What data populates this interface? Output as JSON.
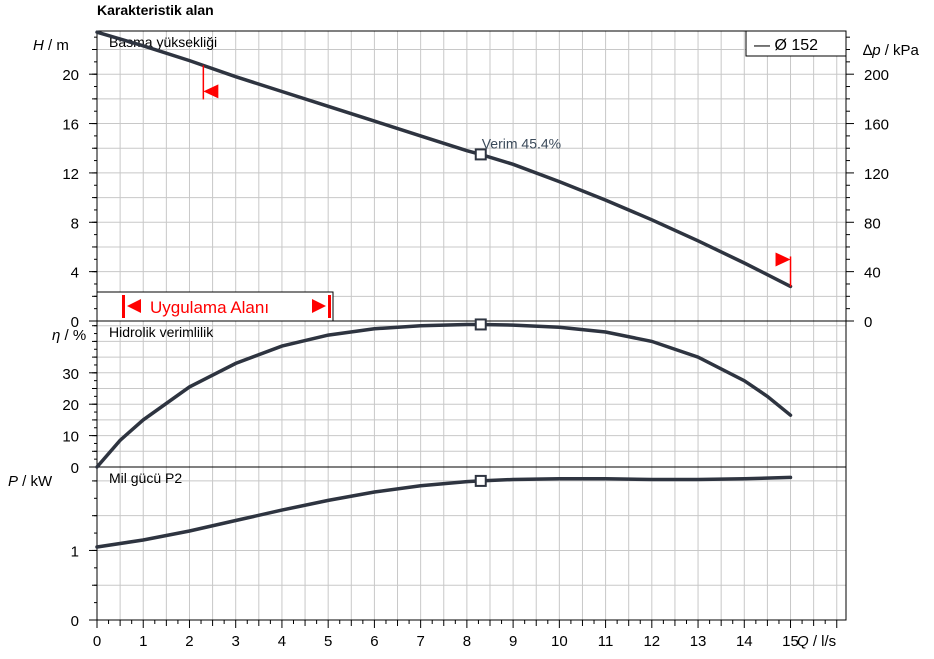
{
  "chart_data": {
    "type": "line",
    "title": "Karakteristik alan",
    "legend": {
      "label": "— Ø 152",
      "placement": "top-right"
    },
    "x_axis": {
      "label_var": "Q",
      "label_unit": " / l/s",
      "ticks": [
        "0",
        "1",
        "2",
        "3",
        "4",
        "5",
        "6",
        "7",
        "8",
        "9",
        "10",
        "11",
        "12",
        "13",
        "14",
        "15"
      ],
      "range": [
        0,
        16.2
      ]
    },
    "duty_point": {
      "q": 8.3,
      "label": "Verim  45.4%"
    },
    "operating_range": {
      "label": "Uygulama Alanı",
      "q_min": 2.3,
      "q_max": 15.0
    },
    "panels": [
      {
        "id": "head",
        "label": "Basma yüksekliği",
        "ylabel_var": "H",
        "ylabel_unit": " / m",
        "ylim": [
          0,
          23.5
        ],
        "yticks": [
          0,
          4,
          8,
          12,
          16,
          20
        ],
        "right_axis": {
          "label_var": "∆p",
          "label_unit": " / kPa",
          "ticks": [
            0,
            40,
            80,
            120,
            160,
            200
          ],
          "factor": 0.1
        },
        "series": [
          {
            "x": [
              0,
              1,
              2,
              3,
              4,
              5,
              6,
              7,
              8,
              8.3,
              9,
              10,
              11,
              12,
              13,
              14,
              15
            ],
            "y": [
              23.4,
              22.3,
              21.1,
              19.8,
              18.6,
              17.4,
              16.2,
              15.0,
              13.8,
              13.5,
              12.7,
              11.3,
              9.8,
              8.2,
              6.5,
              4.7,
              2.8
            ]
          }
        ]
      },
      {
        "id": "efficiency",
        "label": "Hidrolik verimlilik",
        "ylabel_var": "η",
        "ylabel_unit": " / %",
        "ylim": [
          0,
          46.5
        ],
        "yticks": [
          0,
          10,
          20,
          30
        ],
        "series": [
          {
            "x": [
              0,
              0.5,
              1,
              2,
              3,
              4,
              5,
              6,
              7,
              8,
              8.3,
              9,
              10,
              11,
              12,
              13,
              14,
              14.5,
              15
            ],
            "y": [
              0,
              8.5,
              15,
              25.5,
              33,
              38.5,
              42,
              44,
              45,
              45.4,
              45.4,
              45.2,
              44.5,
              43,
              40,
              35,
              27.5,
              22.5,
              16.5
            ]
          }
        ]
      },
      {
        "id": "power",
        "label": "Mil gücü P2",
        "ylabel_var": "P",
        "ylabel_unit": "  / kW",
        "ylim": [
          0,
          2.2
        ],
        "yticks": [
          0,
          1
        ],
        "series": [
          {
            "x": [
              0,
              1,
              2,
              3,
              4,
              5,
              6,
              7,
              8,
              8.3,
              9,
              10,
              11,
              12,
              13,
              14,
              15
            ],
            "y": [
              1.05,
              1.15,
              1.28,
              1.43,
              1.58,
              1.72,
              1.84,
              1.93,
              1.99,
              2.0,
              2.02,
              2.03,
              2.03,
              2.02,
              2.02,
              2.03,
              2.05
            ]
          }
        ]
      }
    ]
  }
}
